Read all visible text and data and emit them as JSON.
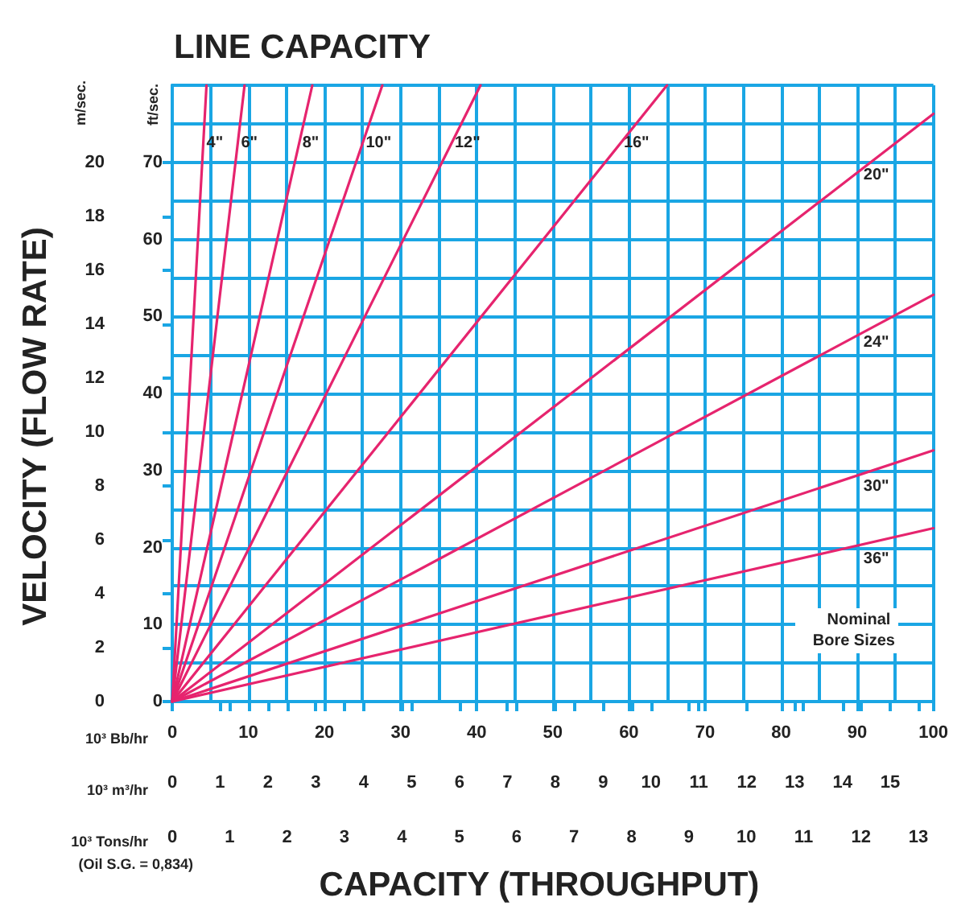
{
  "chart_data": {
    "type": "line",
    "title": "LINE CAPACITY",
    "xlabel": "CAPACITY (THROUGHPUT)",
    "ylabel": "VELOCITY (FLOW RATE)",
    "annotations": [
      "m/sec.",
      "ft/sec.",
      "10³ Bb/hr",
      "10³ m³/hr",
      "10³ Tons/hr",
      "(Oil S.G. = 0,834)",
      "Nominal Bore Sizes",
      "0",
      "1",
      "2",
      "3",
      "4",
      "5",
      "6",
      "7",
      "8",
      "9",
      "10",
      "11",
      "12",
      "13"
    ],
    "xlim": [
      0,
      100
    ],
    "xticks": [
      0,
      10,
      20,
      30,
      40,
      50,
      60,
      70,
      80,
      90,
      100
    ],
    "x2lim": [
      0,
      15.9
    ],
    "x2ticks": [
      0,
      1,
      2,
      3,
      4,
      5,
      6,
      7,
      8,
      9,
      10,
      11,
      12,
      13,
      14,
      15
    ],
    "ylim": [
      0,
      22.86
    ],
    "yticks": [
      0,
      2,
      4,
      6,
      8,
      10,
      12,
      14,
      16,
      18,
      20
    ],
    "y2lim": [
      0,
      80
    ],
    "y2ticks": [
      0,
      10,
      20,
      30,
      40,
      50,
      60,
      70
    ],
    "grid": true,
    "legend": false,
    "marker": "none",
    "line_style": "solid",
    "series": [
      {
        "name": "4\"",
        "color": "#e6246e",
        "axis": "y2",
        "x": [
          0,
          4.5
        ],
        "values": [
          0,
          80
        ]
      },
      {
        "name": "6\"",
        "color": "#e6246e",
        "axis": "y2",
        "x": [
          0,
          9.5
        ],
        "values": [
          0,
          80
        ]
      },
      {
        "name": "8\"",
        "color": "#e6246e",
        "axis": "y2",
        "x": [
          0,
          18.4
        ],
        "values": [
          0,
          80
        ]
      },
      {
        "name": "10\"",
        "color": "#e6246e",
        "axis": "y2",
        "x": [
          0,
          27.6
        ],
        "values": [
          0,
          80
        ]
      },
      {
        "name": "12\"",
        "color": "#e6246e",
        "axis": "y2",
        "x": [
          0,
          40.5
        ],
        "values": [
          0,
          80
        ]
      },
      {
        "name": "16\"",
        "color": "#e6246e",
        "axis": "y2",
        "x": [
          0,
          65
        ],
        "values": [
          0,
          80
        ]
      },
      {
        "name": "20\"",
        "color": "#e6246e",
        "axis": "y2",
        "x": [
          0,
          100
        ],
        "values": [
          0,
          76.3
        ]
      },
      {
        "name": "24\"",
        "color": "#e6246e",
        "axis": "y2",
        "x": [
          0,
          100
        ],
        "values": [
          0,
          52.8
        ]
      },
      {
        "name": "30\"",
        "color": "#e6246e",
        "axis": "y2",
        "x": [
          0,
          100
        ],
        "values": [
          0,
          32.6
        ]
      },
      {
        "name": "36\"",
        "color": "#e6246e",
        "axis": "y2",
        "x": [
          0,
          100
        ],
        "values": [
          0,
          22.5
        ]
      }
    ]
  }
}
